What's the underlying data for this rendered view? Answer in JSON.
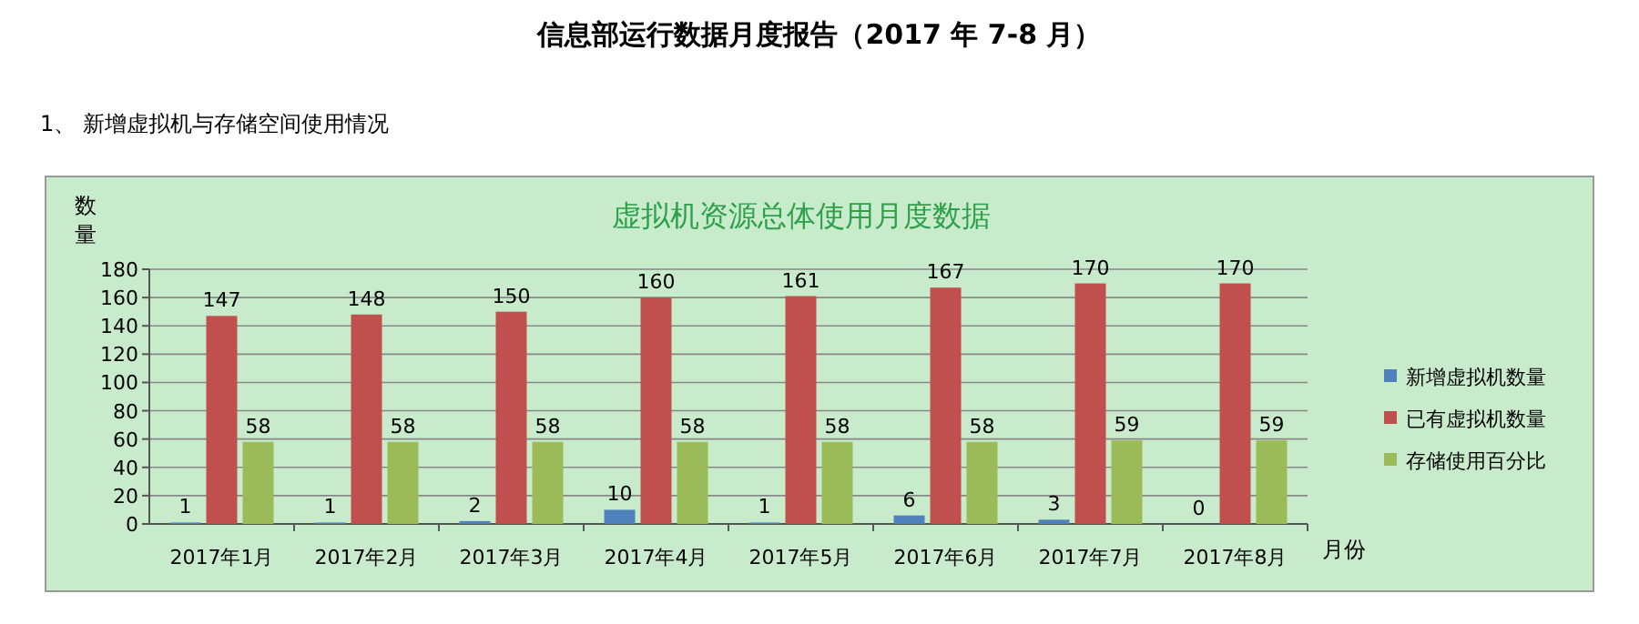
{
  "chart_data": {
    "type": "bar",
    "title": "虚拟机资源总体使用月度数据",
    "xlabel": "月份",
    "ylabel": "数量",
    "annotations": [
      "信息部运行数据月度报告（2017 年 7-8 月）",
      "1、 新增虚拟机与存储空间使用情况"
    ],
    "categories": [
      "2017年1月",
      "2017年2月",
      "2017年3月",
      "2017年4月",
      "2017年5月",
      "2017年6月",
      "2017年7月",
      "2017年8月"
    ],
    "series": [
      {
        "name": "新增虚拟机数量",
        "color": "#4f81bd",
        "values": [
          1,
          1,
          2,
          10,
          1,
          6,
          3,
          0
        ]
      },
      {
        "name": "已有虚拟机数量",
        "color": "#c0504d",
        "values": [
          147,
          148,
          150,
          160,
          161,
          167,
          170,
          170
        ]
      },
      {
        "name": "存储使用百分比",
        "color": "#9bbb59",
        "values": [
          58,
          58,
          58,
          58,
          58,
          58,
          59,
          59
        ]
      }
    ],
    "ylim": [
      0,
      180
    ],
    "yticks": [
      0,
      20,
      40,
      60,
      80,
      100,
      120,
      140,
      160,
      180
    ],
    "grid": "y",
    "legend": "right",
    "data_labels": true
  }
}
